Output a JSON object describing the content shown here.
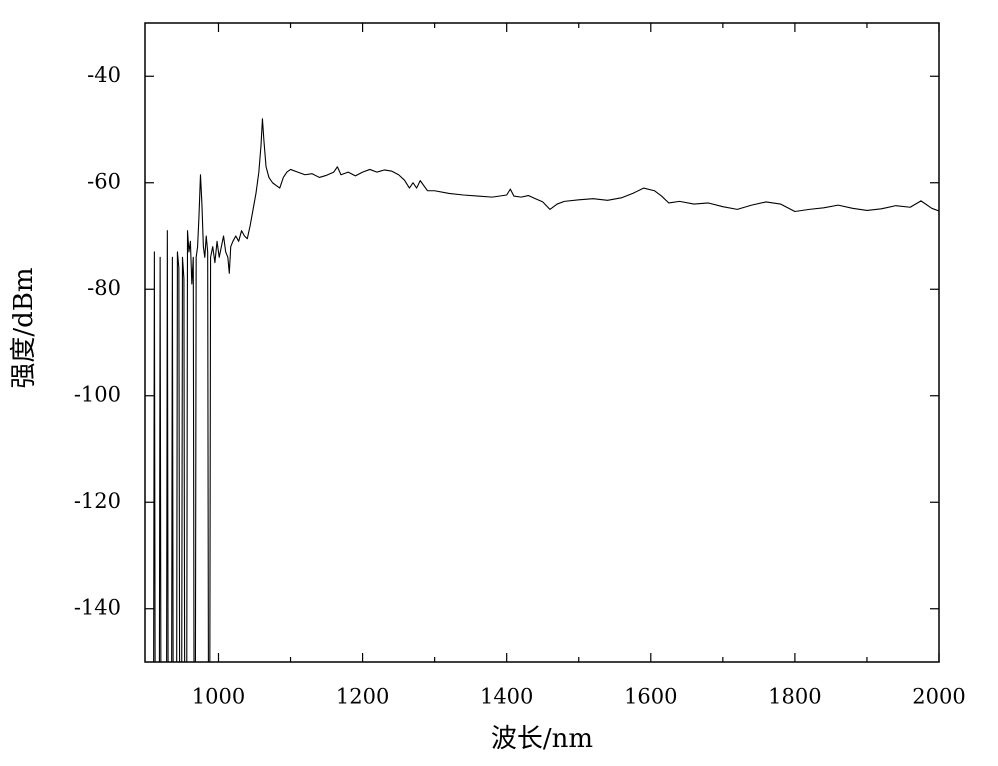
{
  "chart_data": {
    "type": "line",
    "xlabel": "波长/nm",
    "ylabel": "强度/dBm",
    "xlim": [
      898,
      2000
    ],
    "xticks": [
      1000,
      1200,
      1400,
      1600,
      1800,
      2000
    ],
    "xminorticks": [
      1100,
      1300,
      1500,
      1700,
      1900
    ],
    "ylim": [
      -150,
      -30
    ],
    "yticks": [
      -140,
      -120,
      -100,
      -80,
      -60,
      -40
    ],
    "grid": false,
    "color": "#000000",
    "x": [
      905,
      910,
      911,
      912,
      918,
      919,
      920,
      928,
      929,
      930,
      935,
      936,
      937,
      942,
      943,
      945,
      946,
      949,
      950,
      952,
      953,
      956,
      957,
      959,
      961,
      963,
      965,
      966,
      968,
      969,
      971,
      973,
      975,
      977,
      979,
      981,
      983,
      985,
      986,
      988,
      989,
      992,
      995,
      998,
      1001,
      1004,
      1007,
      1010,
      1013,
      1015,
      1017,
      1020,
      1024,
      1028,
      1032,
      1036,
      1040,
      1044,
      1048,
      1052,
      1056,
      1059,
      1061,
      1063,
      1066,
      1070,
      1075,
      1080,
      1085,
      1090,
      1095,
      1100,
      1110,
      1120,
      1130,
      1140,
      1150,
      1160,
      1165,
      1170,
      1180,
      1190,
      1200,
      1210,
      1220,
      1230,
      1240,
      1250,
      1258,
      1265,
      1270,
      1275,
      1280,
      1290,
      1300,
      1320,
      1340,
      1360,
      1380,
      1400,
      1405,
      1410,
      1420,
      1430,
      1440,
      1450,
      1460,
      1470,
      1480,
      1500,
      1520,
      1540,
      1560,
      1575,
      1590,
      1605,
      1615,
      1625,
      1640,
      1660,
      1680,
      1700,
      1720,
      1740,
      1760,
      1780,
      1800,
      1820,
      1840,
      1860,
      1880,
      1900,
      1920,
      1940,
      1960,
      1975,
      1990,
      2000
    ],
    "values": [
      -150,
      -150,
      -73,
      -150,
      -150,
      -74,
      -150,
      -150,
      -69,
      -150,
      -150,
      -74,
      -150,
      -150,
      -73,
      -76,
      -150,
      -150,
      -74,
      -78,
      -150,
      -150,
      -69,
      -73,
      -71,
      -79,
      -74,
      -150,
      -150,
      -74,
      -72,
      -66,
      -58.5,
      -64,
      -72,
      -74,
      -70,
      -73,
      -150,
      -150,
      -74,
      -72,
      -75,
      -71,
      -74,
      -72,
      -70,
      -73,
      -74,
      -77,
      -72,
      -71,
      -70,
      -71,
      -69,
      -70,
      -70.5,
      -68,
      -65,
      -62,
      -58,
      -53,
      -48,
      -52,
      -57,
      -59,
      -60,
      -60.5,
      -61,
      -59,
      -58,
      -57.5,
      -58,
      -58.5,
      -58.3,
      -59,
      -58.6,
      -58,
      -57,
      -58.5,
      -58,
      -58.7,
      -58,
      -57.5,
      -58,
      -57.6,
      -57.8,
      -58.5,
      -59.5,
      -61,
      -60,
      -61,
      -59.6,
      -61.5,
      -61.5,
      -62,
      -62.3,
      -62.5,
      -62.7,
      -62.3,
      -61.2,
      -62.5,
      -62.7,
      -62.4,
      -63,
      -63.6,
      -65,
      -64,
      -63.5,
      -63.2,
      -63,
      -63.3,
      -62.8,
      -62,
      -61,
      -61.5,
      -62.5,
      -63.8,
      -63.5,
      -64,
      -63.8,
      -64.5,
      -65,
      -64.2,
      -63.6,
      -64,
      -65.4,
      -65,
      -64.7,
      -64.2,
      -64.8,
      -65.2,
      -64.9,
      -64.3,
      -64.6,
      -63.4,
      -64.8,
      -65.3
    ]
  }
}
